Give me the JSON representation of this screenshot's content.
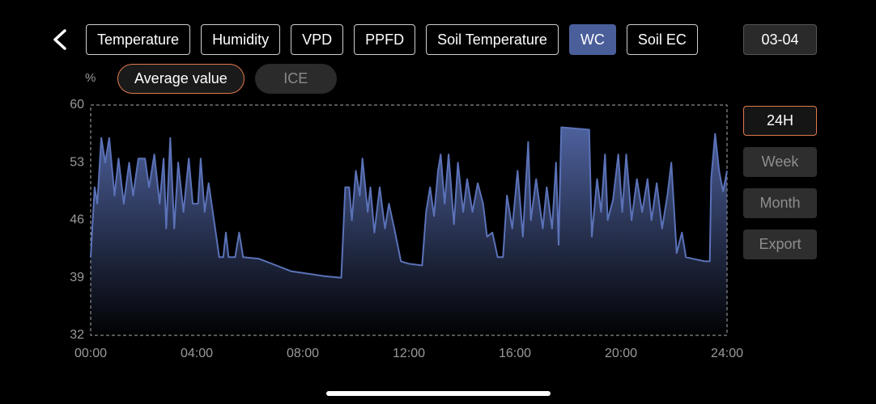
{
  "tabs": [
    {
      "label": "Temperature",
      "active": false
    },
    {
      "label": "Humidity",
      "active": false
    },
    {
      "label": "VPD",
      "active": false
    },
    {
      "label": "PPFD",
      "active": false
    },
    {
      "label": "Soil Temperature",
      "active": false
    },
    {
      "label": "WC",
      "active": true
    },
    {
      "label": "Soil EC",
      "active": false
    }
  ],
  "date": "03-04",
  "modes": [
    {
      "label": "Average value",
      "active": true
    },
    {
      "label": "ICE",
      "active": false
    }
  ],
  "side_buttons": [
    {
      "label": "24H",
      "active": true
    },
    {
      "label": "Week",
      "active": false
    },
    {
      "label": "Month",
      "active": false
    },
    {
      "label": "Export",
      "active": false
    }
  ],
  "chart_data": {
    "type": "area",
    "ylabel": "%",
    "color": "#5b72b8",
    "xlim": [
      0,
      24
    ],
    "ylim": [
      32,
      60
    ],
    "yticks": [
      32,
      39,
      46,
      53,
      60
    ],
    "xticks": [
      {
        "value": 0,
        "label": "00:00"
      },
      {
        "value": 4,
        "label": "04:00"
      },
      {
        "value": 8,
        "label": "08:00"
      },
      {
        "value": 12,
        "label": "12:00"
      },
      {
        "value": 16,
        "label": "16:00"
      },
      {
        "value": 20,
        "label": "20:00"
      },
      {
        "value": 24,
        "label": "24:00"
      }
    ],
    "grid": false,
    "x": [
      0,
      0.15,
      0.25,
      0.4,
      0.55,
      0.7,
      0.9,
      1.05,
      1.25,
      1.45,
      1.6,
      1.8,
      2.05,
      2.2,
      2.4,
      2.6,
      2.75,
      2.85,
      3.0,
      3.15,
      3.3,
      3.5,
      3.7,
      3.85,
      4.05,
      4.15,
      4.3,
      4.45,
      4.65,
      4.85,
      5.0,
      5.1,
      5.2,
      5.45,
      5.6,
      5.75,
      6.35,
      7.0,
      7.55,
      8.2,
      8.8,
      9.45,
      9.6,
      9.75,
      9.85,
      10.0,
      10.15,
      10.25,
      10.45,
      10.55,
      10.7,
      10.9,
      11.1,
      11.25,
      11.45,
      11.7,
      12.0,
      12.5,
      12.65,
      12.8,
      12.95,
      13.1,
      13.2,
      13.35,
      13.5,
      13.7,
      13.85,
      14.05,
      14.2,
      14.4,
      14.6,
      14.8,
      14.95,
      15.15,
      15.35,
      15.55,
      15.7,
      15.9,
      16.1,
      16.3,
      16.5,
      16.6,
      16.8,
      17.05,
      17.2,
      17.4,
      17.55,
      17.65,
      17.75,
      18.8,
      18.9,
      19.1,
      19.25,
      19.4,
      19.5,
      19.7,
      19.9,
      20.05,
      20.2,
      20.4,
      20.6,
      20.8,
      21.0,
      21.15,
      21.35,
      21.55,
      21.75,
      21.9,
      22.1,
      22.3,
      22.45,
      23.15,
      23.35,
      23.4,
      23.55,
      23.7,
      23.85,
      24.0
    ],
    "values": [
      41.5,
      50,
      48,
      56,
      53,
      56,
      49,
      53.5,
      48,
      53,
      49,
      53.5,
      53.5,
      50,
      54,
      48,
      53.5,
      45,
      56,
      45,
      53,
      47,
      53.5,
      48,
      48,
      53.5,
      47,
      50.5,
      46,
      41.5,
      41.5,
      44.5,
      41.5,
      41.5,
      44.5,
      41.5,
      41.3,
      40.5,
      39.8,
      39.5,
      39.2,
      39,
      50,
      50,
      46,
      52,
      49,
      53.5,
      47,
      50,
      44.5,
      50,
      45,
      48,
      45,
      41,
      40.7,
      40.5,
      47,
      50,
      46.5,
      52,
      54,
      48,
      54,
      45.5,
      53,
      47,
      51,
      47,
      50.5,
      48,
      44,
      44.5,
      41.5,
      41.5,
      49,
      45,
      52,
      44,
      55.5,
      46,
      51,
      45,
      50,
      45,
      53,
      43,
      57.3,
      57,
      44,
      51,
      47,
      54,
      46,
      48.5,
      54,
      47,
      54,
      46,
      51,
      47,
      51,
      46,
      50.5,
      45,
      49,
      53,
      42,
      44.5,
      41.5,
      41,
      41,
      51,
      56.5,
      52,
      49.5,
      52
    ]
  }
}
